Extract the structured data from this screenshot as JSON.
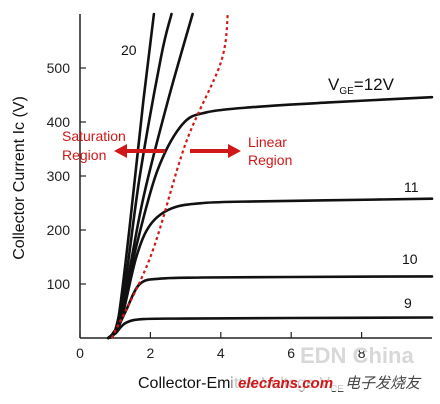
{
  "chart_data": {
    "type": "line",
    "ylabel": "Collector Current Ic (V)",
    "xlabel_prefix": "Collector-Emitter Voltage V",
    "xlabel_sub": "CE",
    "xlim": [
      0,
      10
    ],
    "ylim": [
      0,
      600
    ],
    "xticks": [
      0,
      2,
      4,
      6,
      8
    ],
    "yticks": [
      100,
      200,
      300,
      400,
      500
    ],
    "xtick_labels": [
      "0",
      "2",
      "4",
      "6",
      "8"
    ],
    "ytick_labels": [
      "100",
      "200",
      "300",
      "400",
      "500"
    ],
    "series": [
      {
        "name": "20",
        "values": [
          [
            0.8,
            0
          ],
          [
            0.95,
            10
          ],
          [
            1.1,
            40
          ],
          [
            1.4,
            200
          ],
          [
            1.8,
            440
          ],
          [
            2.1,
            600
          ]
        ]
      },
      {
        "name": "12",
        "values": [
          [
            0.8,
            0
          ],
          [
            1.0,
            12
          ],
          [
            1.2,
            50
          ],
          [
            1.6,
            170
          ],
          [
            2.2,
            310
          ],
          [
            2.9,
            395
          ],
          [
            3.6,
            418
          ],
          [
            5,
            428
          ],
          [
            7,
            436
          ],
          [
            10,
            446
          ]
        ]
      },
      {
        "name": "11",
        "values": [
          [
            0.8,
            0
          ],
          [
            1.0,
            12
          ],
          [
            1.2,
            40
          ],
          [
            1.6,
            150
          ],
          [
            2.0,
            210
          ],
          [
            2.6,
            240
          ],
          [
            3.5,
            250
          ],
          [
            5,
            253
          ],
          [
            7,
            255
          ],
          [
            10,
            258
          ]
        ]
      },
      {
        "name": "10",
        "values": [
          [
            0.8,
            0
          ],
          [
            1.0,
            10
          ],
          [
            1.3,
            50
          ],
          [
            1.7,
            100
          ],
          [
            2.3,
            110
          ],
          [
            3.5,
            112
          ],
          [
            6,
            113
          ],
          [
            10,
            114
          ]
        ]
      },
      {
        "name": "9",
        "values": [
          [
            0.8,
            0
          ],
          [
            1.0,
            8
          ],
          [
            1.3,
            28
          ],
          [
            1.8,
            35
          ],
          [
            3,
            36
          ],
          [
            6,
            37
          ],
          [
            10,
            38
          ]
        ]
      },
      {
        "name": "",
        "values": [
          [
            0.8,
            0
          ],
          [
            1.0,
            14
          ],
          [
            1.3,
            110
          ],
          [
            1.7,
            300
          ],
          [
            2.3,
            520
          ],
          [
            2.6,
            600
          ]
        ]
      },
      {
        "name": "",
        "values": [
          [
            0.8,
            0
          ],
          [
            1.0,
            14
          ],
          [
            1.3,
            90
          ],
          [
            1.8,
            260
          ],
          [
            2.5,
            440
          ],
          [
            3.2,
            600
          ]
        ]
      }
    ],
    "boundary": {
      "values": [
        [
          0.9,
          0
        ],
        [
          2.0,
          150
        ],
        [
          3.0,
          360
        ],
        [
          4.0,
          510
        ],
        [
          4.2,
          600
        ]
      ]
    },
    "labels": {
      "vge_prefix": "V",
      "vge_sub": "GE",
      "vge_suffix": "=12V",
      "label_20": "20",
      "label_11": "11",
      "label_10": "10",
      "label_9": "9",
      "saturation_line1": "Saturation",
      "saturation_line2": "Region",
      "linear_line1": "Linear",
      "linear_line2": "Region"
    },
    "watermark": {
      "brand": "elecfans.com",
      "chinese": "电子发烧友",
      "faint": "EDN China"
    },
    "colors": {
      "curve": "#111111",
      "boundary": "#d01818",
      "text_red": "#d01818"
    }
  }
}
